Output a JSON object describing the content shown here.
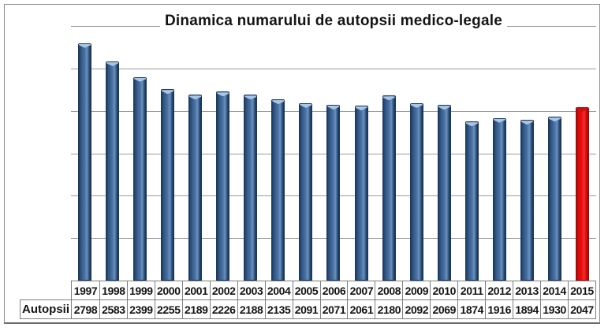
{
  "chart_data": {
    "type": "bar",
    "title": "Dinamica numarului de autopsii medico-legale",
    "categories": [
      "1997",
      "1998",
      "1999",
      "2000",
      "2001",
      "2002",
      "2003",
      "2004",
      "2005",
      "2006",
      "2007",
      "2008",
      "2009",
      "2010",
      "2011",
      "2012",
      "2013",
      "2014",
      "2015"
    ],
    "series": [
      {
        "name": "Autopsii",
        "values": [
          2798,
          2583,
          2399,
          2255,
          2189,
          2226,
          2188,
          2135,
          2091,
          2071,
          2061,
          2180,
          2092,
          2069,
          1874,
          1916,
          1894,
          1930,
          2047
        ]
      }
    ],
    "xlabel": "",
    "ylabel": "",
    "ylim": [
      0,
      3000
    ],
    "gridline_step": 500,
    "grid": true,
    "legend": false,
    "y_axis_labels_shown": false,
    "data_table_shown": true,
    "highlight_category": "2015"
  },
  "colors": {
    "bar_blue_dark": "#1C3A5E",
    "bar_blue_mid": "#3D6394",
    "bar_blue_light": "#6C92BE",
    "bar_blue_cap": "#A9C6E6",
    "bar_red": "#EE0C0C",
    "bar_red_dark": "#A50808",
    "bar_red_cap": "#C51414",
    "gridline": "#9C9C9C",
    "table_border": "#7F7F7F",
    "frame_border": "#8A8A8A",
    "text": "#141414"
  }
}
